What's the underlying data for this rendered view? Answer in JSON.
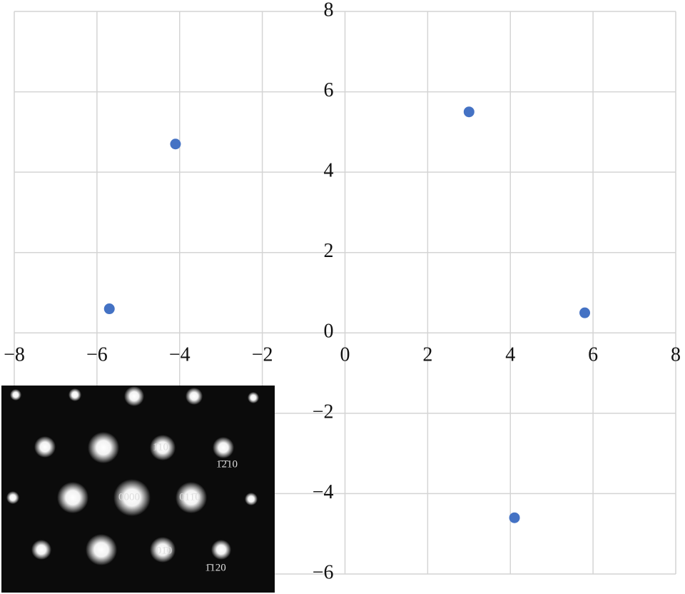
{
  "chart_data": {
    "type": "scatter",
    "x": [
      -5.7,
      -4.1,
      3.0,
      5.8,
      4.1
    ],
    "values": [
      0.6,
      4.7,
      5.5,
      0.5,
      -4.6
    ],
    "color": "#4472c4",
    "xlim": [
      -8,
      8
    ],
    "xticks": [
      {
        "value": -8,
        "label": "−8"
      },
      {
        "value": -6,
        "label": "−6"
      },
      {
        "value": -4,
        "label": "−4"
      },
      {
        "value": -2,
        "label": "−2"
      },
      0,
      2,
      4,
      6,
      8
    ],
    "ylim": [
      -6,
      8
    ],
    "yticks": [
      {
        "value": -6,
        "label": "−6"
      },
      {
        "value": -4,
        "label": "−4"
      },
      {
        "value": -2,
        "label": "−2"
      },
      0,
      2,
      4,
      6,
      8
    ],
    "grid": true
  },
  "inset": {
    "labels": [
      "1̄10",
      "1̄2̄10",
      "0000",
      "011̄0",
      "01̄0",
      "1̄120"
    ]
  }
}
